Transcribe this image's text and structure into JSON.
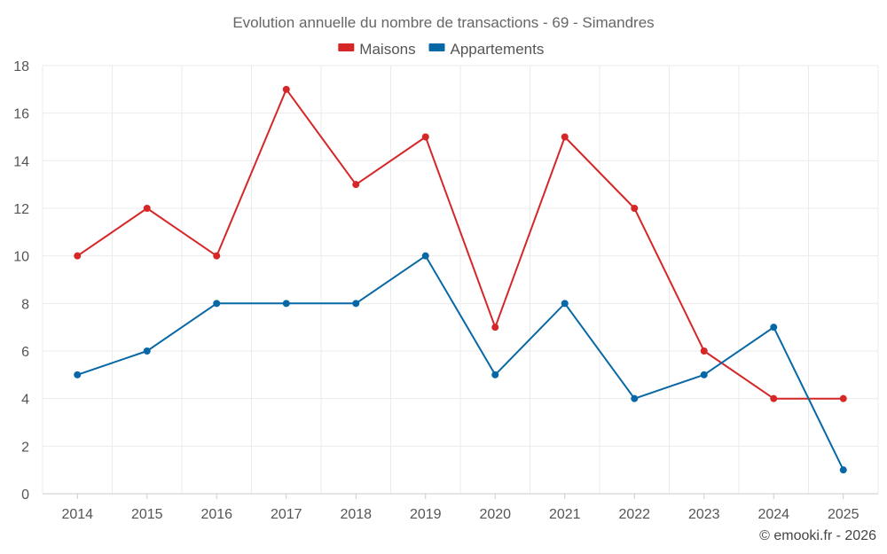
{
  "chart_data": {
    "type": "line",
    "title": "Evolution annuelle du nombre de transactions - 69 - Simandres",
    "xlabel": "",
    "ylabel": "",
    "categories": [
      "2014",
      "2015",
      "2016",
      "2017",
      "2018",
      "2019",
      "2020",
      "2021",
      "2022",
      "2023",
      "2024",
      "2025"
    ],
    "ylim": [
      0,
      18
    ],
    "yticks": [
      0,
      2,
      4,
      6,
      8,
      10,
      12,
      14,
      16,
      18
    ],
    "grid": true,
    "legend_position": "top-center",
    "series": [
      {
        "name": "Maisons",
        "color": "#d62728",
        "values": [
          10,
          12,
          10,
          17,
          13,
          15,
          7,
          15,
          12,
          6,
          4,
          4
        ]
      },
      {
        "name": "Appartements",
        "color": "#0868a6",
        "values": [
          5,
          6,
          8,
          8,
          8,
          10,
          5,
          8,
          4,
          5,
          7,
          1
        ]
      }
    ],
    "credit": "© emooki.fr - 2026"
  }
}
